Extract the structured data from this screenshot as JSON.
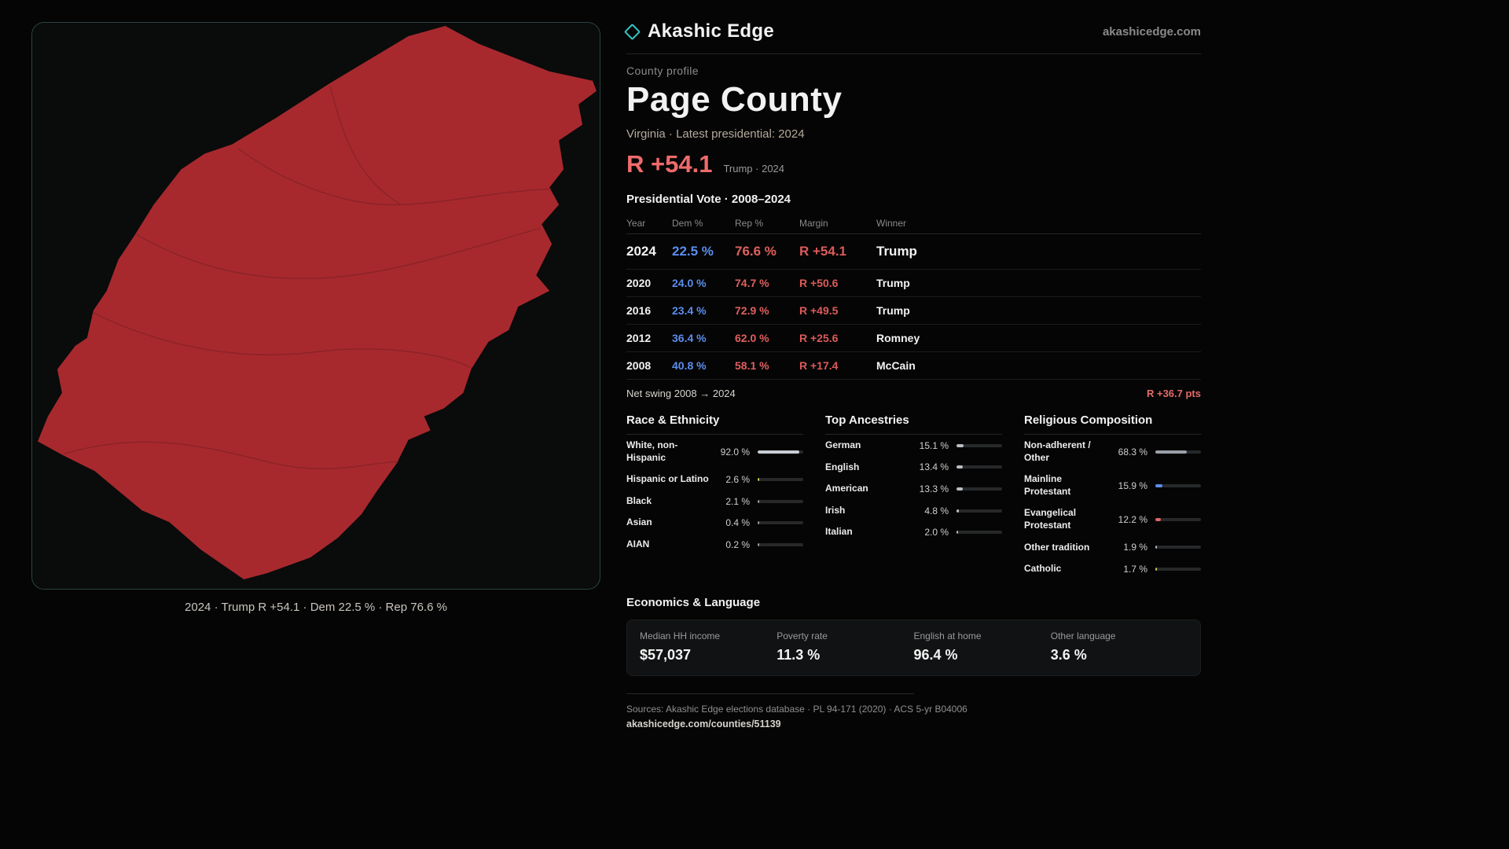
{
  "brand": {
    "name": "Akashic Edge",
    "site": "akashicedge.com"
  },
  "profile": {
    "kicker": "County profile",
    "title": "Page County",
    "subtitle": "Virginia · Latest presidential: 2024",
    "headline": {
      "margin": "R +54.1",
      "note": "Trump · 2024"
    }
  },
  "map": {
    "caption": "2024 · Trump R +54.1 · Dem 22.5 % · Rep 76.6 %",
    "fill": "#a7292e"
  },
  "vote_table": {
    "title": "Presidential Vote · 2008–2024",
    "columns": {
      "year": "Year",
      "dem": "Dem %",
      "rep": "Rep %",
      "margin": "Margin",
      "winner": "Winner"
    },
    "rows": [
      {
        "year": "2024",
        "dem": "22.5 %",
        "rep": "76.6 %",
        "margin": "R +54.1",
        "winner": "Trump"
      },
      {
        "year": "2020",
        "dem": "24.0 %",
        "rep": "74.7 %",
        "margin": "R +50.6",
        "winner": "Trump"
      },
      {
        "year": "2016",
        "dem": "23.4 %",
        "rep": "72.9 %",
        "margin": "R +49.5",
        "winner": "Trump"
      },
      {
        "year": "2012",
        "dem": "36.4 %",
        "rep": "62.0 %",
        "margin": "R +25.6",
        "winner": "Romney"
      },
      {
        "year": "2008",
        "dem": "40.8 %",
        "rep": "58.1 %",
        "margin": "R +17.4",
        "winner": "McCain"
      }
    ],
    "net_swing": {
      "label": "Net swing 2008 → 2024",
      "value": "R +36.7 pts"
    }
  },
  "sections": {
    "race": {
      "title": "Race & Ethnicity",
      "items": [
        {
          "label": "White, non-Hispanic",
          "value": "92.0 %",
          "pct": 92.0,
          "color": "#c9ced6"
        },
        {
          "label": "Hispanic or Latino",
          "value": "2.6 %",
          "pct": 2.6,
          "color": "#d8cf55"
        },
        {
          "label": "Black",
          "value": "2.1 %",
          "pct": 2.1,
          "color": "#9aa1a9"
        },
        {
          "label": "Asian",
          "value": "0.4 %",
          "pct": 0.4,
          "color": "#9aa1a9"
        },
        {
          "label": "AIAN",
          "value": "0.2 %",
          "pct": 0.2,
          "color": "#9aa1a9"
        }
      ]
    },
    "ancestries": {
      "title": "Top Ancestries",
      "items": [
        {
          "label": "German",
          "value": "15.1 %",
          "pct": 15.1,
          "color": "#b9bec6"
        },
        {
          "label": "English",
          "value": "13.4 %",
          "pct": 13.4,
          "color": "#b9bec6"
        },
        {
          "label": "American",
          "value": "13.3 %",
          "pct": 13.3,
          "color": "#b9bec6"
        },
        {
          "label": "Irish",
          "value": "4.8 %",
          "pct": 4.8,
          "color": "#b9bec6"
        },
        {
          "label": "Italian",
          "value": "2.0 %",
          "pct": 2.0,
          "color": "#b9bec6"
        }
      ]
    },
    "religion": {
      "title": "Religious Composition",
      "items": [
        {
          "label": "Non-adherent / Other",
          "value": "68.3 %",
          "pct": 68.3,
          "color": "#9aa1a9"
        },
        {
          "label": "Mainline Protestant",
          "value": "15.9 %",
          "pct": 15.9,
          "color": "#5b8dee"
        },
        {
          "label": "Evangelical Protestant",
          "value": "12.2 %",
          "pct": 12.2,
          "color": "#e06565"
        },
        {
          "label": "Other tradition",
          "value": "1.9 %",
          "pct": 1.9,
          "color": "#b9bec6"
        },
        {
          "label": "Catholic",
          "value": "1.7 %",
          "pct": 1.7,
          "color": "#d8cf55"
        }
      ]
    }
  },
  "economics": {
    "title": "Economics & Language",
    "stats": [
      {
        "label": "Median HH income",
        "value": "$57,037"
      },
      {
        "label": "Poverty rate",
        "value": "11.3 %"
      },
      {
        "label": "English at home",
        "value": "96.4 %"
      },
      {
        "label": "Other language",
        "value": "3.6 %"
      }
    ]
  },
  "footer": {
    "sources": "Sources: Akashic Edge elections database · PL 94-171 (2020) · ACS 5-yr B04006",
    "permalink": "akashicedge.com/counties/51139"
  }
}
